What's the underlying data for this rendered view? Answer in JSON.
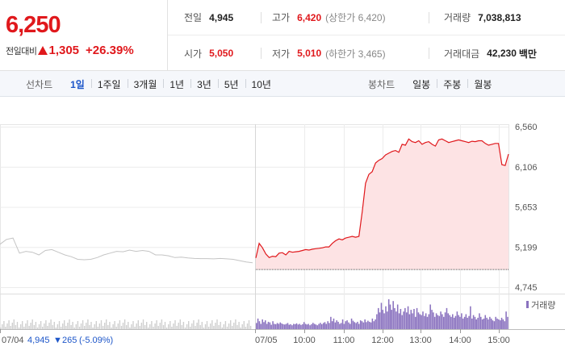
{
  "quote": {
    "price": "6,250",
    "change_label": "전일대비",
    "change_abs": "1,305",
    "change_pct": "+26.39%",
    "stats": {
      "prev_close": {
        "label": "전일",
        "value": "4,945"
      },
      "open": {
        "label": "시가",
        "value": "5,050"
      },
      "high": {
        "label": "고가",
        "value": "6,420",
        "limit": "(상한가 6,420)"
      },
      "low": {
        "label": "저가",
        "value": "5,010",
        "limit": "(하한가 3,465)"
      },
      "volume": {
        "label": "거래량",
        "value": "7,038,813"
      },
      "amount": {
        "label": "거래대금",
        "value": "42,230",
        "unit": "백만"
      }
    }
  },
  "tabs": {
    "line_header": "선차트",
    "line_periods": [
      "1일",
      "1주일",
      "3개월",
      "1년",
      "3년",
      "5년",
      "10년"
    ],
    "active_line_period": "1일",
    "candle_header": "봉차트",
    "candle_periods": [
      "일봉",
      "주봉",
      "월봉"
    ]
  },
  "colors": {
    "up": "#e0181c",
    "down": "#1d56c9",
    "prev_day_line": "#c4c4c4",
    "area_fill": "#fde3e4",
    "volume_today": "#8a72bf",
    "volume_prev": "#cfcfcf"
  },
  "chart_data": {
    "type": "line",
    "y_ticks": [
      "6,560",
      "6,106",
      "5,653",
      "5,199",
      "4,745"
    ],
    "ylim": [
      4745,
      6560
    ],
    "x_ticks": [
      "07/04",
      "07/05",
      "10:00",
      "11:00",
      "12:00",
      "13:00",
      "14:00",
      "15:00"
    ],
    "prev_day_info": {
      "date": "07/04",
      "close": "4,945",
      "change": "265",
      "change_pct": "(-5.09%)"
    },
    "volume_legend": "거래량",
    "series": [
      {
        "day": "07/04",
        "x": [
          0,
          10,
          20,
          30,
          40,
          50,
          60,
          70,
          80,
          90,
          100,
          110,
          120,
          130,
          140,
          150,
          160,
          170,
          180,
          190,
          200,
          210,
          220,
          230,
          240,
          250,
          260,
          270,
          280,
          290,
          300,
          310,
          320,
          330,
          340,
          350,
          360,
          370,
          380,
          390
        ],
        "values": [
          5230,
          5285,
          5300,
          5130,
          5150,
          5140,
          5110,
          5160,
          5170,
          5140,
          5110,
          5090,
          5060,
          5055,
          5060,
          5080,
          5110,
          5130,
          5150,
          5145,
          5165,
          5150,
          5160,
          5150,
          5110,
          5110,
          5100,
          5080,
          5085,
          5075,
          5070,
          5068,
          5068,
          5065,
          5070,
          5065,
          5060,
          5045,
          5030,
          5020
        ]
      },
      {
        "day": "07/05",
        "x": [
          0,
          5,
          10,
          15,
          20,
          25,
          30,
          35,
          40,
          45,
          50,
          55,
          60,
          65,
          70,
          75,
          80,
          85,
          90,
          95,
          100,
          105,
          110,
          115,
          120,
          125,
          130,
          135,
          140,
          145,
          150,
          155,
          160,
          165,
          170,
          175,
          180,
          185,
          190,
          195,
          200,
          205,
          210,
          215,
          220,
          225,
          230,
          235,
          240,
          245,
          250,
          255,
          260,
          265,
          270,
          275,
          280,
          285,
          290,
          295,
          300,
          305,
          310,
          315,
          320,
          325,
          330,
          335,
          340,
          345,
          350,
          355,
          360,
          365,
          370,
          375,
          380
        ],
        "values": [
          5075,
          5240,
          5190,
          5120,
          5080,
          5095,
          5090,
          5130,
          5135,
          5110,
          5150,
          5140,
          5145,
          5150,
          5160,
          5170,
          5165,
          5175,
          5180,
          5185,
          5190,
          5200,
          5200,
          5240,
          5270,
          5290,
          5280,
          5300,
          5310,
          5320,
          5310,
          5320,
          5600,
          5920,
          6020,
          6050,
          6150,
          6180,
          6200,
          6240,
          6260,
          6280,
          6290,
          6270,
          6360,
          6350,
          6420,
          6390,
          6380,
          6400,
          6360,
          6380,
          6390,
          6360,
          6340,
          6410,
          6420,
          6400,
          6380,
          6390,
          6400,
          6410,
          6400,
          6390,
          6380,
          6395,
          6390,
          6400,
          6400,
          6370,
          6350,
          6360,
          6370,
          6370,
          6130,
          6120,
          6250
        ]
      }
    ],
    "volume_today": [
      35,
      60,
      45,
      30,
      55,
      40,
      50,
      30,
      42,
      38,
      25,
      45,
      30,
      28,
      35,
      30,
      38,
      32,
      28,
      26,
      30,
      35,
      25,
      28,
      22,
      30,
      28,
      33,
      26,
      30,
      24,
      28,
      40,
      30,
      26,
      30,
      22,
      28,
      36,
      30,
      26,
      22,
      30,
      36,
      28,
      35,
      40,
      30,
      45,
      35,
      70,
      45,
      60,
      38,
      50,
      42,
      30,
      35,
      55,
      30,
      45,
      50,
      38,
      30,
      60,
      48,
      40,
      35,
      42,
      30,
      50,
      45,
      38,
      55,
      40,
      48,
      42,
      38,
      60,
      45,
      55,
      85,
      120,
      95,
      150,
      110,
      90,
      130,
      100,
      170,
      140,
      110,
      160,
      120,
      100,
      140,
      90,
      115,
      80,
      100,
      120,
      95,
      130,
      85,
      110,
      90,
      115,
      70,
      120,
      95,
      85,
      80,
      100,
      75,
      90,
      70,
      85,
      140,
      110,
      95,
      70,
      90,
      80,
      75,
      100,
      85,
      70,
      95,
      120,
      90,
      80,
      70,
      85,
      65,
      75,
      100,
      80,
      70,
      90,
      60,
      70,
      85,
      65,
      75,
      130,
      60,
      80,
      70,
      55,
      65,
      90,
      70,
      55,
      60,
      80,
      65,
      55,
      70,
      60,
      50,
      45,
      70,
      60,
      55,
      50,
      65,
      55,
      45,
      100,
      70
    ]
  }
}
